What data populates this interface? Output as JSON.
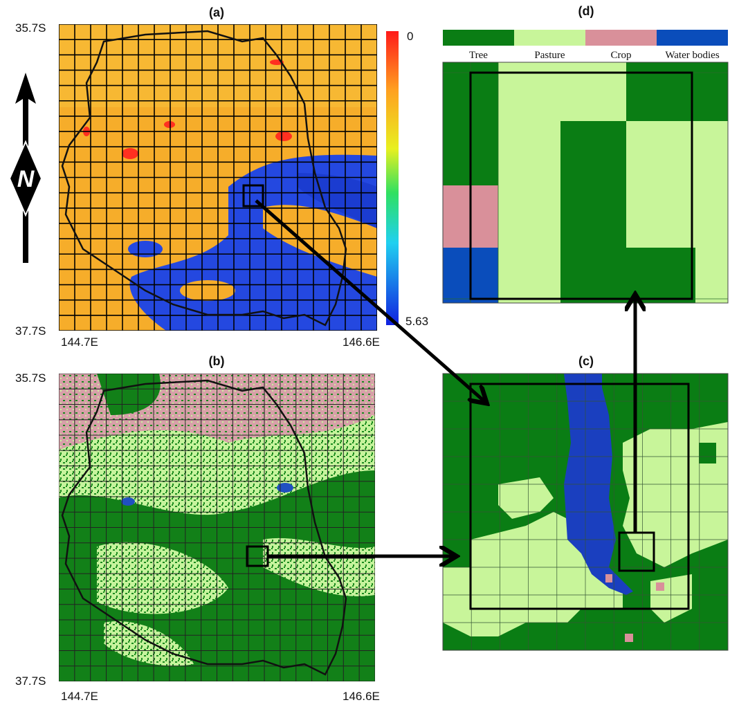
{
  "panels": {
    "a": {
      "label": "(a)",
      "lat_top": "35.7S",
      "lat_bottom": "37.7S",
      "lon_left": "144.7E",
      "lon_right": "146.6E",
      "colorbar": {
        "top_label": "0",
        "bottom_label": "5.63"
      }
    },
    "b": {
      "label": "(b)",
      "lat_top": "35.7S",
      "lat_bottom": "37.7S",
      "lon_left": "144.7E",
      "lon_right": "146.6E"
    },
    "c": {
      "label": "(c)"
    },
    "d": {
      "label": "(d)",
      "legend": [
        "Tree",
        "Pasture",
        "Crop",
        "Water bodies"
      ]
    }
  },
  "north": "N"
}
